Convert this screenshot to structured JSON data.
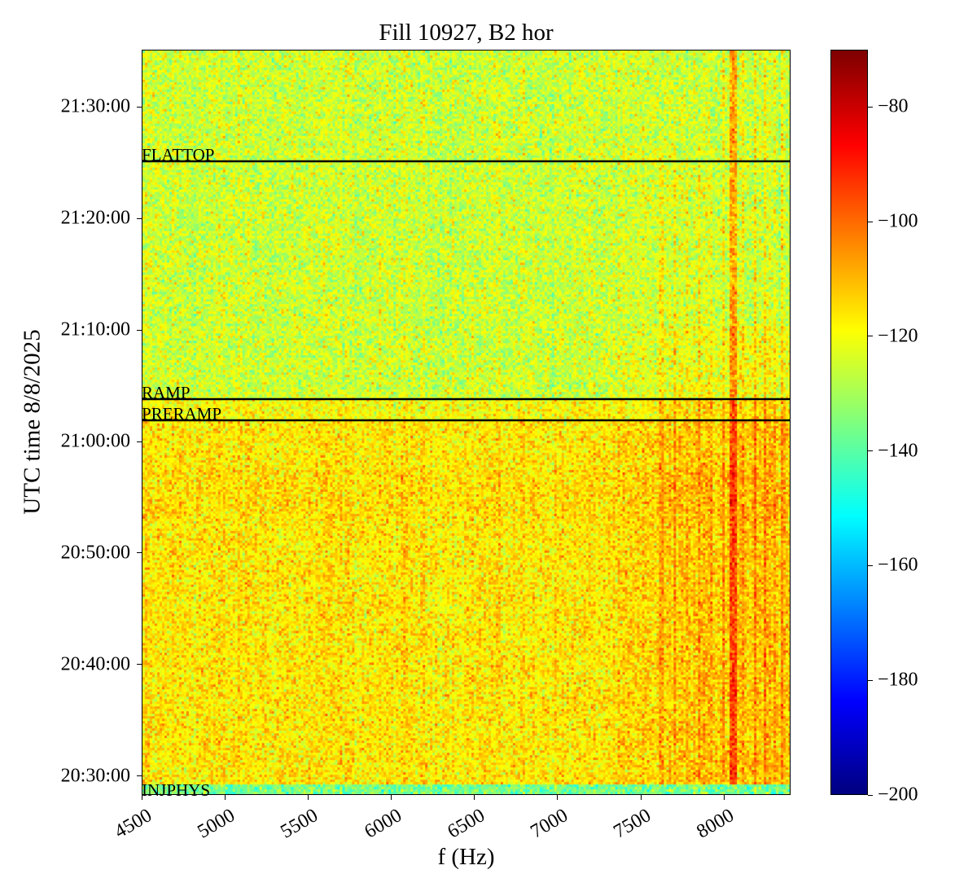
{
  "chart_data": {
    "type": "heatmap",
    "title": "Fill 10927, B2 hor",
    "xlabel": "f (Hz)",
    "ylabel": "UTC time 8/8/2025",
    "xlim": [
      4500,
      8400
    ],
    "ylim": [
      "20:28:19",
      "21:35:07"
    ],
    "x_ticks": [
      "4500",
      "5000",
      "5500",
      "6000",
      "6500",
      "7000",
      "7500",
      "8000"
    ],
    "x_tick_values": [
      4500,
      5000,
      5500,
      6000,
      6500,
      7000,
      7500,
      8000
    ],
    "y_ticks": [
      "20:30:00",
      "20:40:00",
      "20:50:00",
      "21:00:00",
      "21:10:00",
      "21:20:00",
      "21:30:00"
    ],
    "colormap": "jet",
    "colorbar": {
      "range": [
        -200,
        -70
      ],
      "ticks": [
        "−200",
        "−180",
        "−160",
        "−140",
        "−120",
        "−100",
        "−80"
      ],
      "tick_values": [
        -200,
        -180,
        -160,
        -140,
        -120,
        -100,
        -80
      ]
    },
    "events": [
      {
        "label": "FLATTOP",
        "time": "21:25:07",
        "line": true
      },
      {
        "label": "RAMP",
        "time": "21:03:48",
        "line": true
      },
      {
        "label": "PRERAMP",
        "time": "21:01:54",
        "line": true
      },
      {
        "label": "INJPHYS",
        "time": "20:29:20",
        "line": false
      }
    ],
    "grid": false
  }
}
